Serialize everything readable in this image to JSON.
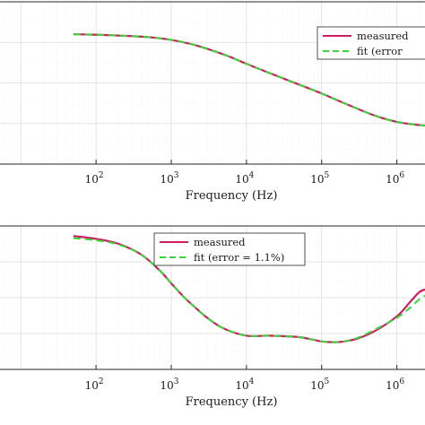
{
  "colors": {
    "measured": "#cc1e63",
    "fit": "#3ad63a"
  },
  "chart_data": [
    {
      "type": "line",
      "x_scale": "log",
      "xlim": [
        5,
        2500000
      ],
      "ylim": [
        0,
        1
      ],
      "xlabel": "Frequency (Hz)",
      "ylabel": "",
      "grid": true,
      "legend_position": "top-right",
      "x_tick_labels": [
        {
          "x": 100,
          "base": "10",
          "exp": "2"
        },
        {
          "x": 1000,
          "base": "10",
          "exp": "3"
        },
        {
          "x": 10000,
          "base": "10",
          "exp": "4"
        },
        {
          "x": 100000,
          "base": "10",
          "exp": "5"
        },
        {
          "x": 1000000,
          "base": "10",
          "exp": "6"
        }
      ],
      "series": [
        {
          "name": "measured",
          "style": "solid",
          "x": [
            50,
            100,
            200,
            500,
            1000,
            2000,
            5000,
            10000,
            20000,
            50000,
            100000,
            200000,
            500000,
            1000000,
            2000000,
            2500000
          ],
          "y": [
            0.8,
            0.797,
            0.792,
            0.782,
            0.765,
            0.735,
            0.675,
            0.618,
            0.562,
            0.49,
            0.435,
            0.375,
            0.3,
            0.26,
            0.24,
            0.238
          ]
        },
        {
          "name": "fit (error",
          "style": "dashed",
          "x": [
            50,
            100,
            200,
            500,
            1000,
            2000,
            5000,
            10000,
            20000,
            50000,
            100000,
            200000,
            500000,
            1000000,
            2000000,
            2500000
          ],
          "y": [
            0.8,
            0.797,
            0.792,
            0.782,
            0.765,
            0.735,
            0.675,
            0.618,
            0.562,
            0.49,
            0.435,
            0.375,
            0.3,
            0.26,
            0.24,
            0.238
          ]
        }
      ]
    },
    {
      "type": "line",
      "x_scale": "log",
      "xlim": [
        5,
        2500000
      ],
      "ylim": [
        0,
        1
      ],
      "xlabel": "Frequency (Hz)",
      "ylabel": "",
      "grid": true,
      "legend_position": "top-center",
      "x_tick_labels": [
        {
          "x": 100,
          "base": "10",
          "exp": "2"
        },
        {
          "x": 1000,
          "base": "10",
          "exp": "3"
        },
        {
          "x": 10000,
          "base": "10",
          "exp": "4"
        },
        {
          "x": 100000,
          "base": "10",
          "exp": "5"
        },
        {
          "x": 1000000,
          "base": "10",
          "exp": "6"
        }
      ],
      "series": [
        {
          "name": "measured",
          "style": "solid",
          "x": [
            50,
            100,
            200,
            400,
            700,
            1000,
            1500,
            2000,
            3000,
            5000,
            10000,
            20000,
            50000,
            100000,
            150000,
            200000,
            300000,
            500000,
            1000000,
            1500000,
            2000000,
            2500000
          ],
          "y": [
            0.93,
            0.91,
            0.875,
            0.8,
            0.69,
            0.6,
            0.5,
            0.44,
            0.36,
            0.285,
            0.235,
            0.235,
            0.225,
            0.195,
            0.19,
            0.195,
            0.215,
            0.265,
            0.37,
            0.47,
            0.54,
            0.56
          ]
        },
        {
          "name": "fit (error = 1.1%)",
          "style": "dashed",
          "x": [
            50,
            100,
            200,
            400,
            700,
            1000,
            1500,
            2000,
            3000,
            5000,
            10000,
            20000,
            50000,
            100000,
            150000,
            200000,
            300000,
            500000,
            1000000,
            1500000,
            2000000,
            2500000
          ],
          "y": [
            0.915,
            0.9,
            0.87,
            0.8,
            0.69,
            0.6,
            0.5,
            0.44,
            0.36,
            0.285,
            0.235,
            0.235,
            0.225,
            0.195,
            0.19,
            0.195,
            0.22,
            0.275,
            0.36,
            0.43,
            0.49,
            0.52
          ]
        }
      ]
    }
  ]
}
